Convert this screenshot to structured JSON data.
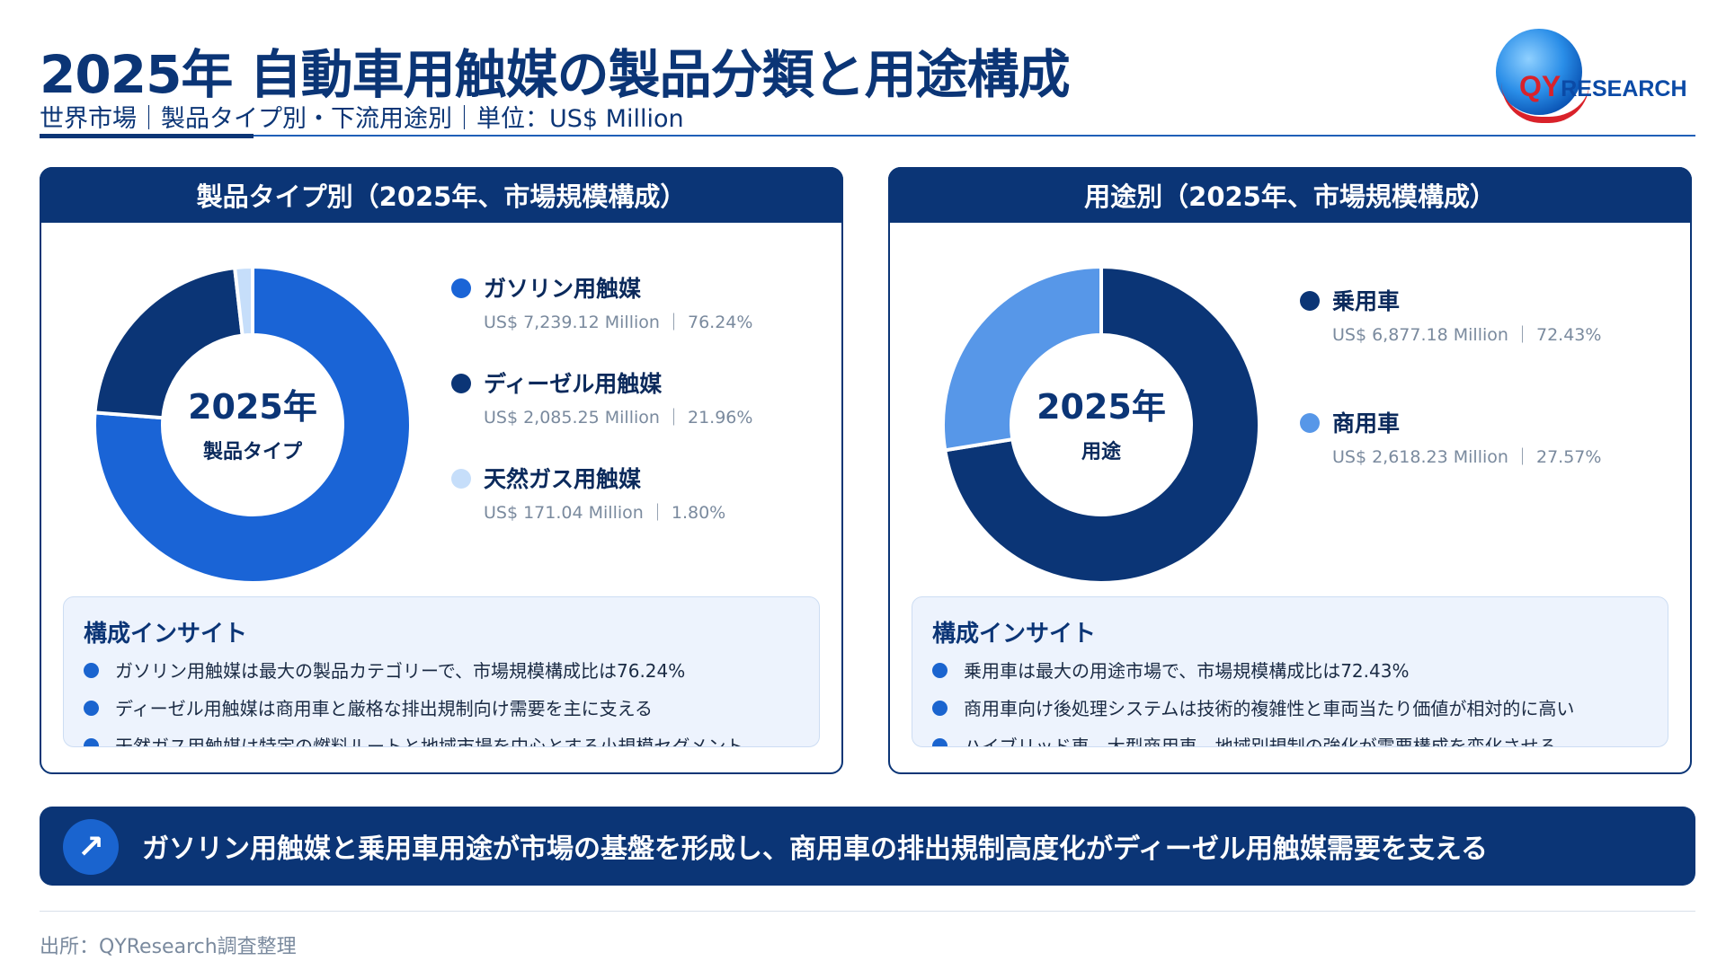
{
  "header": {
    "title": "2025年 自動車用触媒の製品分類と用途構成",
    "subtitle": "世界市場｜製品タイプ別・下流用途別｜単位：US$ Million"
  },
  "logo": {
    "qy": "QY",
    "rest": "RESEARCH"
  },
  "chart_data": [
    {
      "type": "pie",
      "title": "製品タイプ別（2025年、市場規模構成）",
      "center_year": "2025年",
      "center_label": "製品タイプ",
      "categories": [
        "ガソリン用触媒",
        "ディーゼル用触媒",
        "天然ガス用触媒"
      ],
      "values": [
        7239.12,
        2085.25,
        171.04
      ],
      "percent": [
        76.24,
        21.96,
        1.8
      ],
      "value_labels": [
        "US$ 7,239.12 Million ｜ 76.24%",
        "US$ 2,085.25 Million ｜ 21.96%",
        "US$ 171.04 Million ｜ 1.80%"
      ],
      "colors": [
        "#1a64d6",
        "#0b3576",
        "#c6defa"
      ],
      "legend_position": "right"
    },
    {
      "type": "pie",
      "title": "用途別（2025年、市場規模構成）",
      "center_year": "2025年",
      "center_label": "用途",
      "categories": [
        "乗用車",
        "商用車"
      ],
      "values": [
        6877.18,
        2618.23
      ],
      "percent": [
        72.43,
        27.57
      ],
      "value_labels": [
        "US$ 6,877.18 Million ｜ 72.43%",
        "US$ 2,618.23 Million ｜ 27.57%"
      ],
      "colors": [
        "#0b3576",
        "#5797e8"
      ],
      "legend_position": "right"
    }
  ],
  "insights": {
    "left": {
      "title": "構成インサイト",
      "bullets": [
        "ガソリン用触媒は最大の製品カテゴリーで、市場規模構成比は76.24%",
        "ディーゼル用触媒は商用車と厳格な排出規制向け需要を主に支える",
        "天然ガス用触媒は特定の燃料ルートと地域市場を中心とする小規模セグメント"
      ]
    },
    "right": {
      "title": "構成インサイト",
      "bullets": [
        "乗用車は最大の用途市場で、市場規模構成比は72.43%",
        "商用車向け後処理システムは技術的複雑性と車両当たり価値が相対的に高い",
        "ハイブリッド車、大型商用車、地域別規制の強化が需要構成を変化させる"
      ]
    }
  },
  "banner": {
    "icon": "↗",
    "text": "ガソリン用触媒と乗用車用途が市場の基盤を形成し、商用車の排出規制高度化がディーゼル用触媒需要を支える"
  },
  "source": "出所：QYResearch調査整理"
}
